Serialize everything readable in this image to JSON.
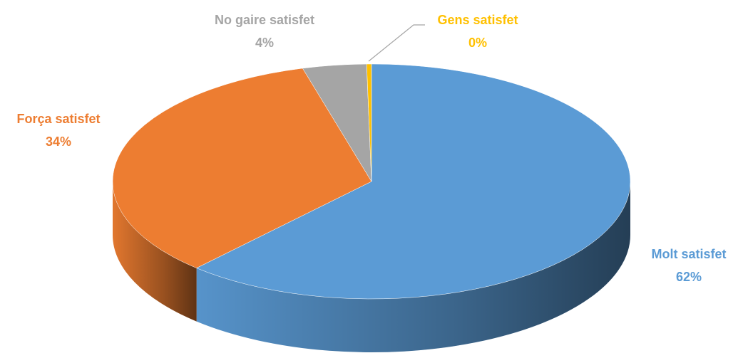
{
  "chart_data": {
    "type": "pie",
    "categories": [
      "Molt satisfet",
      "Força satisfet",
      "No gaire satisfet",
      "Gens satisfet"
    ],
    "values": [
      62,
      34,
      4,
      0.3
    ],
    "value_labels": [
      "62%",
      "34%",
      "4%",
      "0%"
    ],
    "colors": [
      "#5b9bd5",
      "#ed7d31",
      "#a5a5a5",
      "#ffc000"
    ]
  }
}
